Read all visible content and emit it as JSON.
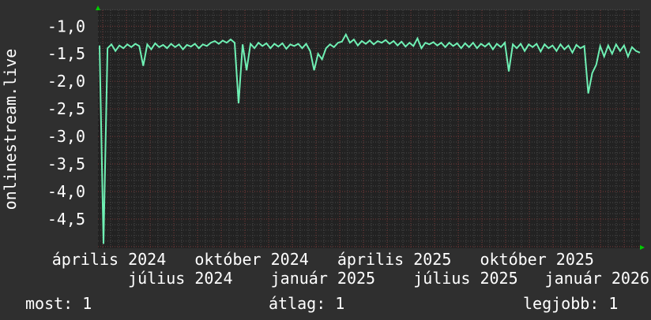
{
  "chart_data": {
    "type": "line",
    "ylabel": "onlinestream.live",
    "ylim": [
      -5.03,
      -0.71
    ],
    "y_ticks": [
      -1.0,
      -1.5,
      -2.0,
      -2.5,
      -3.0,
      -3.5,
      -4.0,
      -4.5
    ],
    "y_tick_labels": [
      "-1,0",
      "-1,5",
      "-2,0",
      "-2,5",
      "-3,0",
      "-3,5",
      "-4,0",
      "-4,5"
    ],
    "x_tick_labels": [
      "április 2024",
      "július 2024",
      "október 2024",
      "január 2025",
      "április 2025",
      "július 2025",
      "október 2025",
      "január 2026"
    ],
    "grid": true,
    "line_color": "#6ff0b4",
    "series": [
      {
        "values": [
          -1.35,
          -4.95,
          -1.4,
          -1.33,
          -1.45,
          -1.35,
          -1.4,
          -1.33,
          -1.38,
          -1.32,
          -1.36,
          -1.72,
          -1.33,
          -1.42,
          -1.31,
          -1.38,
          -1.34,
          -1.4,
          -1.32,
          -1.38,
          -1.33,
          -1.42,
          -1.34,
          -1.37,
          -1.32,
          -1.4,
          -1.33,
          -1.36,
          -1.3,
          -1.27,
          -1.32,
          -1.26,
          -1.3,
          -1.24,
          -1.3,
          -2.4,
          -1.33,
          -1.8,
          -1.32,
          -1.4,
          -1.3,
          -1.36,
          -1.31,
          -1.4,
          -1.32,
          -1.37,
          -1.31,
          -1.41,
          -1.33,
          -1.36,
          -1.32,
          -1.4,
          -1.32,
          -1.45,
          -1.8,
          -1.5,
          -1.6,
          -1.4,
          -1.33,
          -1.38,
          -1.3,
          -1.28,
          -1.15,
          -1.3,
          -1.24,
          -1.35,
          -1.27,
          -1.32,
          -1.26,
          -1.33,
          -1.27,
          -1.3,
          -1.25,
          -1.32,
          -1.27,
          -1.35,
          -1.28,
          -1.37,
          -1.3,
          -1.36,
          -1.22,
          -1.4,
          -1.3,
          -1.33,
          -1.29,
          -1.35,
          -1.3,
          -1.38,
          -1.3,
          -1.36,
          -1.31,
          -1.4,
          -1.31,
          -1.38,
          -1.3,
          -1.4,
          -1.32,
          -1.37,
          -1.31,
          -1.42,
          -1.32,
          -1.38,
          -1.3,
          -1.82,
          -1.33,
          -1.4,
          -1.32,
          -1.45,
          -1.33,
          -1.38,
          -1.32,
          -1.46,
          -1.33,
          -1.4,
          -1.35,
          -1.45,
          -1.33,
          -1.42,
          -1.35,
          -1.48,
          -1.34,
          -1.4,
          -1.36,
          -2.22,
          -1.85,
          -1.7,
          -1.36,
          -1.55,
          -1.35,
          -1.5,
          -1.33,
          -1.45,
          -1.35,
          -1.55,
          -1.38,
          -1.45,
          -1.48
        ]
      }
    ]
  },
  "legend": {
    "current_label": "most: 1",
    "average_label": "átlag: 1",
    "max_label": "legjobb: 1"
  }
}
